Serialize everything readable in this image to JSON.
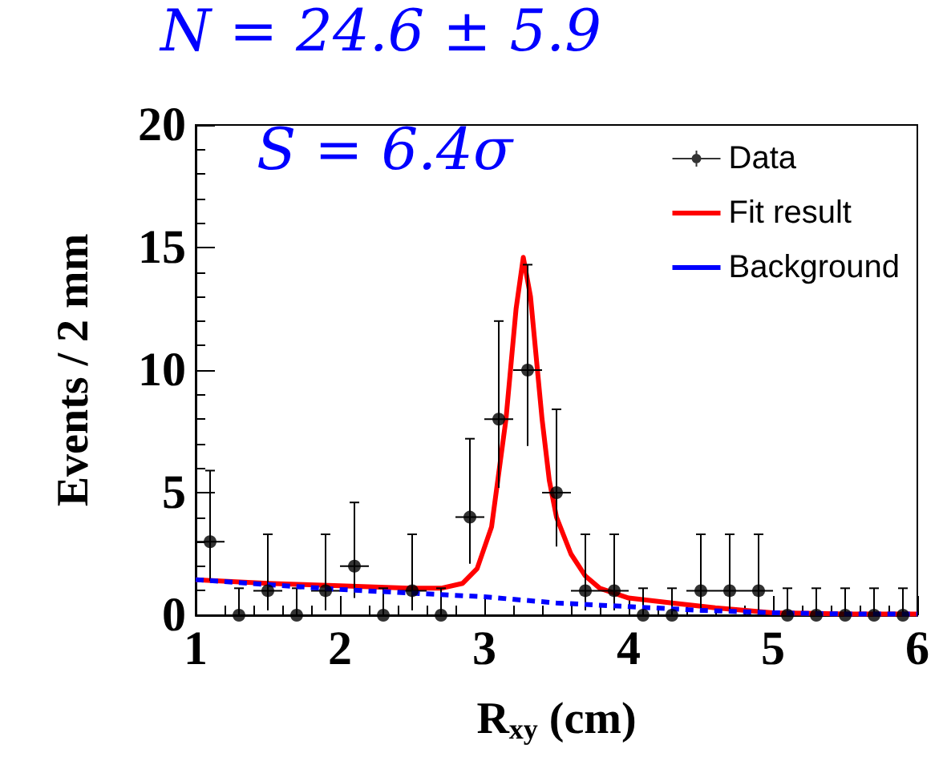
{
  "chart_data": {
    "type": "scatter",
    "xlabel": "R$_{xy}$ (cm)",
    "ylabel": "Events / 2 mm",
    "annotations": [
      "N = 24.6 ± 5.9",
      "S = 6.4σ"
    ],
    "xlim": [
      1,
      6
    ],
    "xticks": [
      1,
      2,
      3,
      4,
      5,
      6
    ],
    "ylim": [
      0,
      20
    ],
    "yticks": [
      0,
      5,
      10,
      15,
      20
    ],
    "grid": false,
    "legend": "top right",
    "series": [
      {
        "name": "Data",
        "marker": "circle",
        "color": "#000000",
        "x": [
          1.1,
          1.3,
          1.5,
          1.7,
          1.9,
          2.1,
          2.3,
          2.5,
          2.7,
          2.9,
          3.1,
          3.3,
          3.5,
          3.7,
          3.9,
          4.1,
          4.3,
          4.5,
          4.7,
          4.9,
          5.1,
          5.3,
          5.5,
          5.7,
          5.9
        ],
        "values": [
          3,
          0,
          1,
          0,
          1,
          2,
          0,
          1,
          0,
          4,
          8,
          10,
          5,
          1,
          1,
          0,
          0,
          1,
          1,
          1,
          0,
          0,
          0,
          0,
          0
        ],
        "errors": [
          [
            1.4,
            5.9
          ],
          [
            0,
            1.1
          ],
          [
            0.2,
            3.3
          ],
          [
            0,
            1.1
          ],
          [
            0.2,
            3.3
          ],
          [
            0.7,
            4.6
          ],
          [
            0,
            1.1
          ],
          [
            0.2,
            3.3
          ],
          [
            0,
            1.1
          ],
          [
            2.1,
            7.2
          ],
          [
            5.2,
            12
          ],
          [
            6.9,
            14.3
          ],
          [
            2.8,
            8.4
          ],
          [
            0.2,
            3.3
          ],
          [
            0.2,
            3.3
          ],
          [
            0,
            1.1
          ],
          [
            0,
            1.1
          ],
          [
            0.2,
            3.3
          ],
          [
            0.2,
            3.3
          ],
          [
            0.2,
            3.3
          ],
          [
            0,
            1.1
          ],
          [
            0,
            1.1
          ],
          [
            0,
            1.1
          ],
          [
            0,
            1.1
          ],
          [
            0,
            1.1
          ]
        ],
        "xerrors": [
          0.1,
          null,
          0.1,
          null,
          0.1,
          0.1,
          null,
          0.1,
          null,
          0.1,
          0.1,
          0.1,
          0.1,
          0.1,
          0.1,
          null,
          null,
          0.1,
          0.1,
          0.1,
          null,
          null,
          null,
          null,
          null
        ]
      },
      {
        "name": "Fit result",
        "type": "line",
        "marker": "none",
        "line_style": "solid",
        "color": "#ff0000",
        "x": [
          1,
          1.5,
          2,
          2.5,
          2.7,
          2.85,
          2.95,
          3.05,
          3.15,
          3.22,
          3.27,
          3.32,
          3.4,
          3.45,
          3.5,
          3.6,
          3.7,
          3.8,
          4,
          4.3,
          4.6,
          5,
          5.5,
          6
        ],
        "values": [
          1.45,
          1.3,
          1.2,
          1.1,
          1.1,
          1.3,
          1.9,
          3.6,
          8,
          12.5,
          14.6,
          13,
          8,
          5.5,
          4,
          2.5,
          1.6,
          1.1,
          0.7,
          0.5,
          0.3,
          0.1,
          0.05,
          0.05
        ]
      },
      {
        "name": "Background",
        "type": "line",
        "marker": "none",
        "line_style": "dashed",
        "color": "#0000ff",
        "x": [
          1,
          1.5,
          2,
          2.5,
          3,
          3.5,
          4,
          4.5,
          5,
          5.5,
          6
        ],
        "values": [
          1.45,
          1.25,
          1.05,
          0.9,
          0.75,
          0.5,
          0.35,
          0.2,
          0.1,
          0.05,
          0.05
        ]
      }
    ]
  }
}
